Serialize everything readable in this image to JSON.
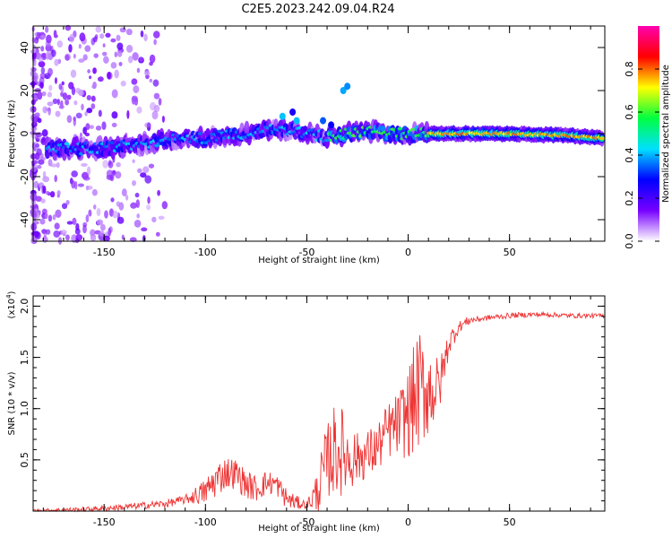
{
  "title": "C2E5.2023.242.09.04.R24",
  "chart_data": [
    {
      "type": "heatmap",
      "name": "spectrogram",
      "xlabel": "Height of straight line (km)",
      "ylabel": "Frequency (Hz)",
      "xlim": [
        -185,
        97
      ],
      "ylim": [
        -50,
        50
      ],
      "xticks": [
        -150,
        -100,
        -50,
        0,
        50
      ],
      "yticks": [
        -40,
        -20,
        0,
        20,
        40
      ],
      "ridge": {
        "x": [
          -170,
          -150,
          -140,
          -120,
          -100,
          -80,
          -70,
          -60,
          -50,
          -40,
          -30,
          -20,
          -10,
          0,
          20,
          50,
          80,
          95
        ],
        "freq": [
          -7,
          -7,
          -6,
          -3,
          -2,
          0,
          2,
          2,
          0,
          -2,
          0,
          1,
          0,
          0,
          0,
          0,
          -1,
          -2
        ]
      },
      "colorbar": {
        "label": "Normalized spectral amplitude",
        "min": 0.0,
        "max": 1.0,
        "ticks": [
          0.0,
          0.2,
          0.4,
          0.6,
          0.8
        ],
        "tick_labels": [
          "0.0",
          "0.2",
          "0.4",
          "0.6",
          "0.8"
        ],
        "colors": [
          "#ffffff",
          "#7700ff",
          "#0000ff",
          "#00e0ff",
          "#00ff40",
          "#ffff00",
          "#ff0000",
          "#ff00b0"
        ]
      }
    },
    {
      "type": "line",
      "name": "snr",
      "xlabel": "Height of straight line (km)",
      "ylabel": "SNR (10 * v/v)",
      "exponent_label": "(x10",
      "exponent_power": "4",
      "xlim": [
        -185,
        97
      ],
      "ylim": [
        0,
        2.1
      ],
      "xticks": [
        -150,
        -100,
        -50,
        0,
        50
      ],
      "yticks": [
        0.5,
        1.0,
        1.5,
        2.0
      ],
      "ytick_labels": [
        "0.5",
        "1.0",
        "1.5",
        "2.0"
      ],
      "color": "#ee3333",
      "envelope": {
        "x": [
          -185,
          -160,
          -140,
          -120,
          -110,
          -100,
          -95,
          -90,
          -85,
          -80,
          -75,
          -70,
          -65,
          -60,
          -55,
          -50,
          -45,
          -40,
          -35,
          -30,
          -25,
          -20,
          -15,
          -10,
          -5,
          0,
          5,
          10,
          15,
          20,
          25,
          30,
          40,
          50,
          60,
          70,
          80,
          97
        ],
        "y": [
          0.0,
          0.01,
          0.03,
          0.06,
          0.1,
          0.15,
          0.25,
          0.33,
          0.32,
          0.22,
          0.18,
          0.24,
          0.23,
          0.09,
          0.06,
          0.05,
          0.12,
          0.38,
          0.48,
          0.42,
          0.45,
          0.48,
          0.55,
          0.7,
          0.75,
          0.82,
          1.0,
          1.05,
          1.1,
          1.6,
          1.78,
          1.85,
          1.88,
          1.9,
          1.91,
          1.91,
          1.9,
          1.9
        ]
      },
      "amplitude": {
        "x": [
          -185,
          -110,
          -95,
          -80,
          -60,
          -50,
          -42,
          -35,
          -25,
          -15,
          -5,
          5,
          12,
          18,
          25,
          35,
          97
        ],
        "a": [
          0.02,
          0.06,
          0.25,
          0.2,
          0.15,
          0.05,
          0.45,
          0.7,
          0.35,
          0.35,
          0.45,
          0.85,
          0.6,
          0.25,
          0.08,
          0.04,
          0.03
        ]
      }
    }
  ]
}
